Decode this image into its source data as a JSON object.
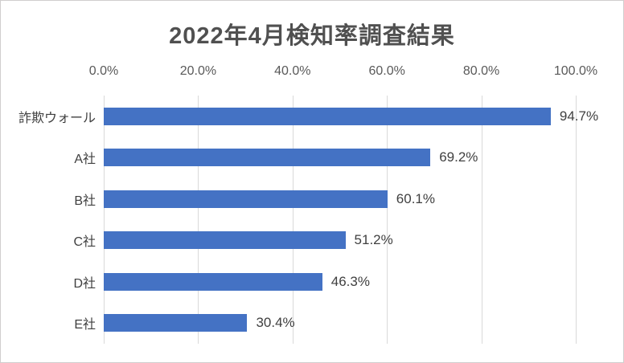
{
  "title": "2022年4月検知率調査結果",
  "chart_data": {
    "type": "bar",
    "orientation": "horizontal",
    "title": "2022年4月検知率調査結果",
    "categories": [
      "詐欺ウォール",
      "A社",
      "B社",
      "C社",
      "D社",
      "E社"
    ],
    "values": [
      94.7,
      69.2,
      60.1,
      51.2,
      46.3,
      30.4
    ],
    "value_labels": [
      "94.7%",
      "69.2%",
      "60.1%",
      "51.2%",
      "46.3%",
      "30.4%"
    ],
    "xlabel": "",
    "ylabel": "",
    "xlim": [
      0,
      100
    ],
    "x_ticks": [
      "0.0%",
      "20.0%",
      "40.0%",
      "60.0%",
      "80.0%",
      "100.0%"
    ],
    "x_tick_values": [
      0,
      20,
      40,
      60,
      80,
      100
    ],
    "grid": true,
    "legend_position": "none",
    "bar_color": "#4472c4",
    "gridline_color": "#d9d9d9",
    "axis_label_color": "#595959",
    "data_label_color": "#404040",
    "title_color": "#505050"
  }
}
